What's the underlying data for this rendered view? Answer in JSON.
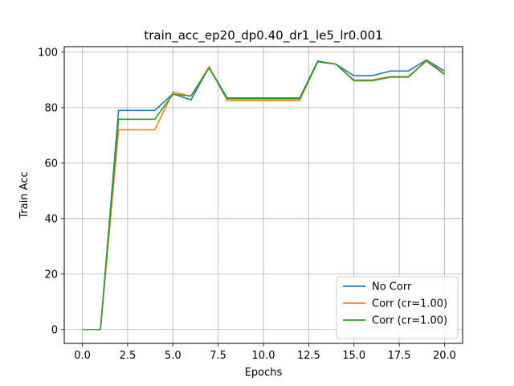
{
  "chart_data": {
    "type": "line",
    "title": "train_acc_ep20_dp0.40_dr1_le5_lr0.001",
    "xlabel": "Epochs",
    "ylabel": "Train Acc",
    "xlim": [
      -1.0,
      21.0
    ],
    "ylim": [
      -5,
      102
    ],
    "xticks": [
      0.0,
      2.5,
      5.0,
      7.5,
      10.0,
      12.5,
      15.0,
      17.5,
      20.0
    ],
    "xtick_labels": [
      "0.0",
      "2.5",
      "5.0",
      "7.5",
      "10.0",
      "12.5",
      "15.0",
      "17.5",
      "20.0"
    ],
    "yticks": [
      0,
      20,
      40,
      60,
      80,
      100
    ],
    "ytick_labels": [
      "0",
      "20",
      "40",
      "60",
      "80",
      "100"
    ],
    "grid": true,
    "legend_position": "bottom-right",
    "x": [
      0,
      1,
      2,
      3,
      4,
      5,
      6,
      7,
      8,
      9,
      10,
      11,
      12,
      13,
      14,
      15,
      16,
      17,
      18,
      19,
      20
    ],
    "series": [
      {
        "name": "No Corr",
        "color": "#1f77b4",
        "values": [
          0,
          0,
          79,
          79,
          79,
          85,
          82.8,
          94.6,
          83.5,
          83.5,
          83.5,
          83.5,
          83.5,
          96.8,
          95.7,
          91.5,
          91.5,
          93.2,
          93.2,
          97.2,
          93.2
        ]
      },
      {
        "name": "Corr (cr=1.00)",
        "color": "#ff7f0e",
        "values": [
          0,
          0,
          72,
          72,
          72,
          85.6,
          84.2,
          94.8,
          82.6,
          82.6,
          82.6,
          82.6,
          82.6,
          96.5,
          95.7,
          90,
          90,
          91.2,
          91.2,
          97,
          92.3
        ]
      },
      {
        "name": "Corr (cr=1.00)",
        "color": "#2ca02c",
        "values": [
          0,
          0,
          75.8,
          75.8,
          75.8,
          84.8,
          84.2,
          94.3,
          83.2,
          83.2,
          83.2,
          83.2,
          83.2,
          96.5,
          95.7,
          89.7,
          89.7,
          91,
          91,
          96.8,
          92
        ]
      }
    ]
  }
}
